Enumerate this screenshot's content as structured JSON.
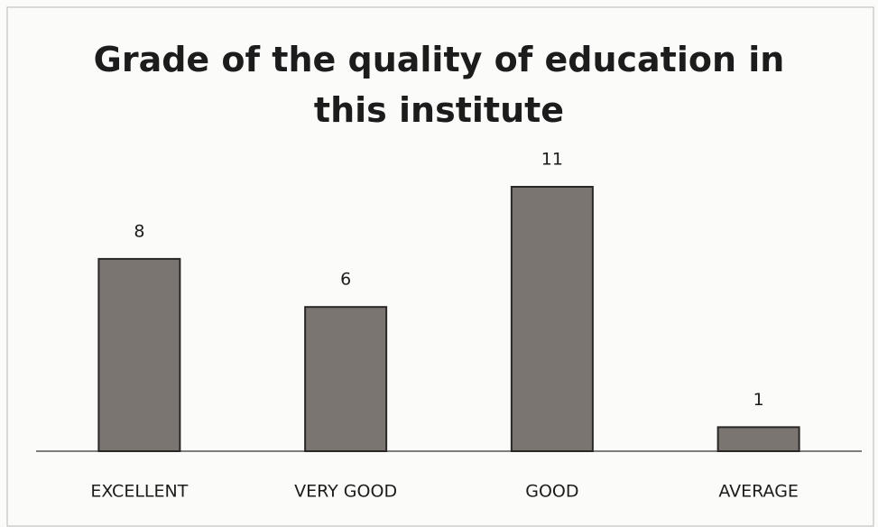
{
  "chart_data": {
    "type": "bar",
    "title": "Grade of the quality of education in this institute",
    "categories": [
      "EXCELLENT",
      "VERY GOOD",
      "GOOD",
      "AVERAGE"
    ],
    "values": [
      8,
      6,
      11,
      1
    ],
    "color": "#7b7572"
  }
}
